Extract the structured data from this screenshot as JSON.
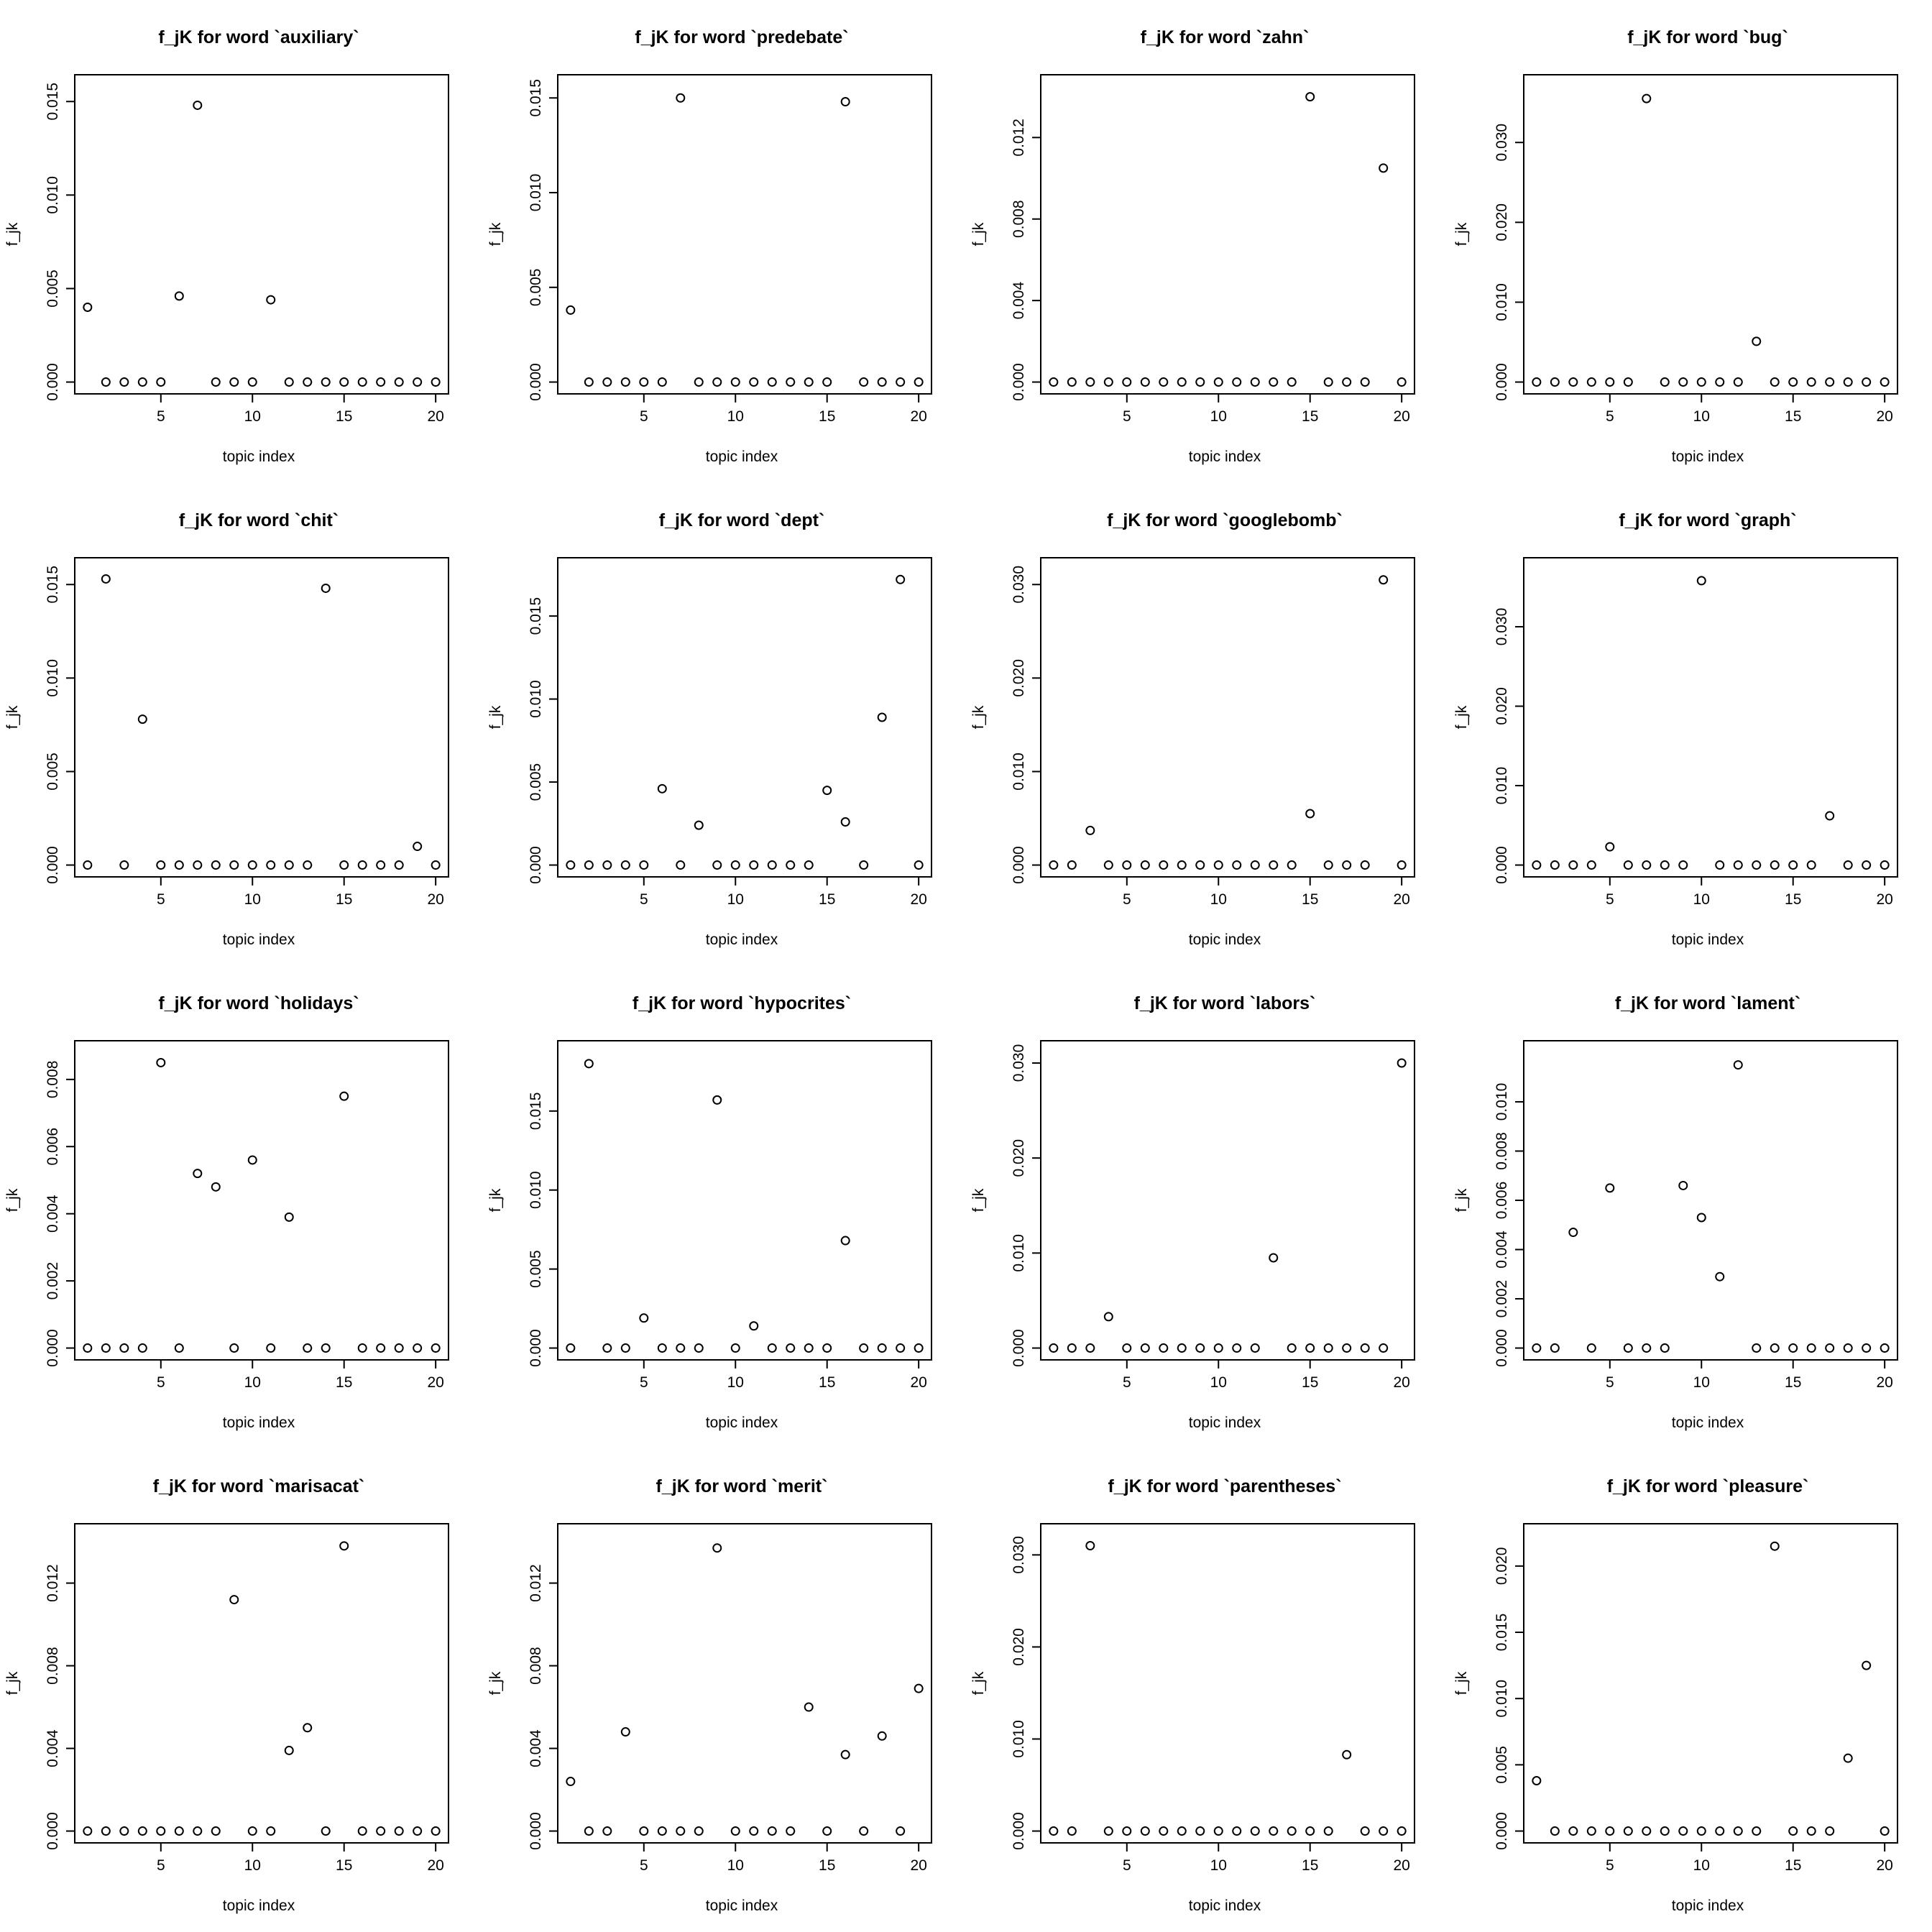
{
  "chart_data": [
    {
      "type": "scatter",
      "title": "f_jK for word `auxiliary`",
      "xlabel": "topic index",
      "ylabel": "f_jk",
      "x": [
        1,
        2,
        3,
        4,
        5,
        6,
        7,
        8,
        9,
        10,
        11,
        12,
        13,
        14,
        15,
        16,
        17,
        18,
        19,
        20
      ],
      "y": [
        0.004,
        0,
        0,
        0,
        0,
        0.0046,
        0.0148,
        0,
        0,
        0,
        0.0044,
        0,
        0,
        0,
        0,
        0,
        0,
        0,
        0,
        0
      ],
      "xticks": [
        5,
        10,
        15,
        20
      ],
      "yticks": [
        "0.000",
        "0.005",
        "0.010",
        "0.015"
      ],
      "ylim": [
        0,
        0.0158
      ]
    },
    {
      "type": "scatter",
      "title": "f_jK for word `predebate`",
      "xlabel": "topic index",
      "ylabel": "f_jk",
      "x": [
        1,
        2,
        3,
        4,
        5,
        6,
        7,
        8,
        9,
        10,
        11,
        12,
        13,
        14,
        15,
        16,
        17,
        18,
        19,
        20
      ],
      "y": [
        0.0038,
        0,
        0,
        0,
        0,
        0,
        0.015,
        0,
        0,
        0,
        0,
        0,
        0,
        0,
        0,
        0.0148,
        0,
        0,
        0,
        0
      ],
      "xticks": [
        5,
        10,
        15,
        20
      ],
      "yticks": [
        "0.000",
        "0.005",
        "0.010",
        "0.015"
      ],
      "ylim": [
        0,
        0.0156
      ]
    },
    {
      "type": "scatter",
      "title": "f_jK for word `zahn`",
      "xlabel": "topic index",
      "ylabel": "f_jk",
      "x": [
        1,
        2,
        3,
        4,
        5,
        6,
        7,
        8,
        9,
        10,
        11,
        12,
        13,
        14,
        15,
        16,
        17,
        18,
        19,
        20
      ],
      "y": [
        0,
        0,
        0,
        0,
        0,
        0,
        0,
        0,
        0,
        0,
        0,
        0,
        0,
        0,
        0.014,
        0,
        0,
        0,
        0.0105,
        0
      ],
      "xticks": [
        5,
        10,
        15,
        20
      ],
      "yticks": [
        "0.000",
        "0.004",
        "0.008",
        "0.012"
      ],
      "ylim": [
        0,
        0.0145
      ]
    },
    {
      "type": "scatter",
      "title": "f_jK for word `bug`",
      "xlabel": "topic index",
      "ylabel": "f_jk",
      "x": [
        1,
        2,
        3,
        4,
        5,
        6,
        7,
        8,
        9,
        10,
        11,
        12,
        13,
        14,
        15,
        16,
        17,
        18,
        19,
        20
      ],
      "y": [
        0,
        0,
        0,
        0,
        0,
        0,
        0.0355,
        0,
        0,
        0,
        0,
        0,
        0.0051,
        0,
        0,
        0,
        0,
        0,
        0,
        0
      ],
      "xticks": [
        5,
        10,
        15,
        20
      ],
      "yticks": [
        "0.000",
        "0.010",
        "0.020",
        "0.030"
      ],
      "ylim": [
        0,
        0.037
      ]
    },
    {
      "type": "scatter",
      "title": "f_jK for word `chit`",
      "xlabel": "topic index",
      "ylabel": "f_jk",
      "x": [
        1,
        2,
        3,
        4,
        5,
        6,
        7,
        8,
        9,
        10,
        11,
        12,
        13,
        14,
        15,
        16,
        17,
        18,
        19,
        20
      ],
      "y": [
        0,
        0.0153,
        0,
        0.0078,
        0,
        0,
        0,
        0,
        0,
        0,
        0,
        0,
        0,
        0.0148,
        0,
        0,
        0,
        0,
        0.001,
        0
      ],
      "xticks": [
        5,
        10,
        15,
        20
      ],
      "yticks": [
        "0.000",
        "0.005",
        "0.010",
        "0.015"
      ],
      "ylim": [
        0,
        0.0158
      ]
    },
    {
      "type": "scatter",
      "title": "f_jK for word `dept`",
      "xlabel": "topic index",
      "ylabel": "f_jk",
      "x": [
        1,
        2,
        3,
        4,
        5,
        6,
        7,
        8,
        9,
        10,
        11,
        12,
        13,
        14,
        15,
        16,
        17,
        18,
        19,
        20
      ],
      "y": [
        0,
        0,
        0,
        0,
        0,
        0.0046,
        0,
        0.0024,
        0,
        0,
        0,
        0,
        0,
        0,
        0.0045,
        0.0026,
        0,
        0.0089,
        0.0172,
        0
      ],
      "xticks": [
        5,
        10,
        15,
        20
      ],
      "yticks": [
        "0.000",
        "0.005",
        "0.010",
        "0.015"
      ],
      "ylim": [
        0,
        0.0178
      ]
    },
    {
      "type": "scatter",
      "title": "f_jK for word `googlebomb`",
      "xlabel": "topic index",
      "ylabel": "f_jk",
      "x": [
        1,
        2,
        3,
        4,
        5,
        6,
        7,
        8,
        9,
        10,
        11,
        12,
        13,
        14,
        15,
        16,
        17,
        18,
        19,
        20
      ],
      "y": [
        0,
        0,
        0.0037,
        0,
        0,
        0,
        0,
        0,
        0,
        0,
        0,
        0,
        0,
        0,
        0.0055,
        0,
        0,
        0,
        0.0305,
        0
      ],
      "xticks": [
        5,
        10,
        15,
        20
      ],
      "yticks": [
        "0.000",
        "0.010",
        "0.020",
        "0.030"
      ],
      "ylim": [
        0,
        0.0316
      ]
    },
    {
      "type": "scatter",
      "title": "f_jK for word `graph`",
      "xlabel": "topic index",
      "ylabel": "f_jk",
      "x": [
        1,
        2,
        3,
        4,
        5,
        6,
        7,
        8,
        9,
        10,
        11,
        12,
        13,
        14,
        15,
        16,
        17,
        18,
        19,
        20
      ],
      "y": [
        0,
        0,
        0,
        0,
        0.0023,
        0,
        0,
        0,
        0,
        0.0358,
        0,
        0,
        0,
        0,
        0,
        0,
        0.0062,
        0,
        0,
        0
      ],
      "xticks": [
        5,
        10,
        15,
        20
      ],
      "yticks": [
        "0.000",
        "0.010",
        "0.020",
        "0.030"
      ],
      "ylim": [
        0,
        0.0372
      ]
    },
    {
      "type": "scatter",
      "title": "f_jK for word `holidays`",
      "xlabel": "topic index",
      "ylabel": "f_jk",
      "x": [
        1,
        2,
        3,
        4,
        5,
        6,
        7,
        8,
        9,
        10,
        11,
        12,
        13,
        14,
        15,
        16,
        17,
        18,
        19,
        20
      ],
      "y": [
        0,
        0,
        0,
        0,
        0.0085,
        0,
        0.0052,
        0.0048,
        0,
        0.0056,
        0,
        0.0039,
        0,
        0,
        0.0075,
        0,
        0,
        0,
        0,
        0
      ],
      "xticks": [
        5,
        10,
        15,
        20
      ],
      "yticks": [
        "0.000",
        "0.002",
        "0.004",
        "0.006",
        "0.008"
      ],
      "ylim": [
        0,
        0.0088
      ]
    },
    {
      "type": "scatter",
      "title": "f_jK for word `hypocrites`",
      "xlabel": "topic index",
      "ylabel": "f_jk",
      "x": [
        1,
        2,
        3,
        4,
        5,
        6,
        7,
        8,
        9,
        10,
        11,
        12,
        13,
        14,
        15,
        16,
        17,
        18,
        19,
        20
      ],
      "y": [
        0,
        0.018,
        0,
        0,
        0.0019,
        0,
        0,
        0,
        0.0157,
        0,
        0.0014,
        0,
        0,
        0,
        0,
        0.0068,
        0,
        0,
        0,
        0
      ],
      "xticks": [
        5,
        10,
        15,
        20
      ],
      "yticks": [
        "0.000",
        "0.005",
        "0.010",
        "0.015"
      ],
      "ylim": [
        0,
        0.0187
      ]
    },
    {
      "type": "scatter",
      "title": "f_jK for word `labors`",
      "xlabel": "topic index",
      "ylabel": "f_jk",
      "x": [
        1,
        2,
        3,
        4,
        5,
        6,
        7,
        8,
        9,
        10,
        11,
        12,
        13,
        14,
        15,
        16,
        17,
        18,
        19,
        20
      ],
      "y": [
        0,
        0,
        0,
        0.0033,
        0,
        0,
        0,
        0,
        0,
        0,
        0,
        0,
        0.0095,
        0,
        0,
        0,
        0,
        0,
        0,
        0.03
      ],
      "xticks": [
        5,
        10,
        15,
        20
      ],
      "yticks": [
        "0.000",
        "0.010",
        "0.020",
        "0.030"
      ],
      "ylim": [
        0,
        0.0311
      ]
    },
    {
      "type": "scatter",
      "title": "f_jK for word `lament`",
      "xlabel": "topic index",
      "ylabel": "f_jk",
      "x": [
        1,
        2,
        3,
        4,
        5,
        6,
        7,
        8,
        9,
        10,
        11,
        12,
        13,
        14,
        15,
        16,
        17,
        18,
        19,
        20
      ],
      "y": [
        0,
        0,
        0.0047,
        0,
        0.0065,
        0,
        0,
        0,
        0.0066,
        0.0053,
        0.0029,
        0.0115,
        0,
        0,
        0,
        0,
        0,
        0,
        0,
        0
      ],
      "xticks": [
        5,
        10,
        15,
        20
      ],
      "yticks": [
        "0.000",
        "0.002",
        "0.004",
        "0.006",
        "0.008",
        "0.010"
      ],
      "ylim": [
        0,
        0.012
      ]
    },
    {
      "type": "scatter",
      "title": "f_jK for word `marisacat`",
      "xlabel": "topic index",
      "ylabel": "f_jk",
      "x": [
        1,
        2,
        3,
        4,
        5,
        6,
        7,
        8,
        9,
        10,
        11,
        12,
        13,
        14,
        15,
        16,
        17,
        18,
        19,
        20
      ],
      "y": [
        0,
        0,
        0,
        0,
        0,
        0,
        0,
        0,
        0.0112,
        0,
        0,
        0.0039,
        0.005,
        0,
        0.0138,
        0,
        0,
        0,
        0,
        0
      ],
      "xticks": [
        5,
        10,
        15,
        20
      ],
      "yticks": [
        "0.000",
        "0.004",
        "0.008",
        "0.012"
      ],
      "ylim": [
        0,
        0.0143
      ]
    },
    {
      "type": "scatter",
      "title": "f_jK for word `merit`",
      "xlabel": "topic index",
      "ylabel": "f_jk",
      "x": [
        1,
        2,
        3,
        4,
        5,
        6,
        7,
        8,
        9,
        10,
        11,
        12,
        13,
        14,
        15,
        16,
        17,
        18,
        19,
        20
      ],
      "y": [
        0.0024,
        0,
        0,
        0.0048,
        0,
        0,
        0,
        0,
        0.0137,
        0,
        0,
        0,
        0,
        0.006,
        0,
        0.0037,
        0,
        0.0046,
        0,
        0.0069
      ],
      "xticks": [
        5,
        10,
        15,
        20
      ],
      "yticks": [
        "0.000",
        "0.004",
        "0.008",
        "0.012"
      ],
      "ylim": [
        0,
        0.0143
      ]
    },
    {
      "type": "scatter",
      "title": "f_jK for word `parentheses`",
      "xlabel": "topic index",
      "ylabel": "f_jk",
      "x": [
        1,
        2,
        3,
        4,
        5,
        6,
        7,
        8,
        9,
        10,
        11,
        12,
        13,
        14,
        15,
        16,
        17,
        18,
        19,
        20
      ],
      "y": [
        0,
        0,
        0.031,
        0,
        0,
        0,
        0,
        0,
        0,
        0,
        0,
        0,
        0,
        0,
        0,
        0,
        0.0083,
        0,
        0,
        0
      ],
      "xticks": [
        5,
        10,
        15,
        20
      ],
      "yticks": [
        "0.000",
        "0.010",
        "0.020",
        "0.030"
      ],
      "ylim": [
        0,
        0.0321
      ]
    },
    {
      "type": "scatter",
      "title": "f_jK for word `pleasure`",
      "xlabel": "topic index",
      "ylabel": "f_jk",
      "x": [
        1,
        2,
        3,
        4,
        5,
        6,
        7,
        8,
        9,
        10,
        11,
        12,
        13,
        14,
        15,
        16,
        17,
        18,
        19,
        20
      ],
      "y": [
        0.0038,
        0,
        0,
        0,
        0,
        0,
        0,
        0,
        0,
        0,
        0,
        0,
        0,
        0.0215,
        0,
        0,
        0,
        0.0055,
        0.0125,
        0
      ],
      "xticks": [
        5,
        10,
        15,
        20
      ],
      "yticks": [
        "0.000",
        "0.005",
        "0.010",
        "0.015",
        "0.020"
      ],
      "ylim": [
        0,
        0.0223
      ]
    }
  ]
}
